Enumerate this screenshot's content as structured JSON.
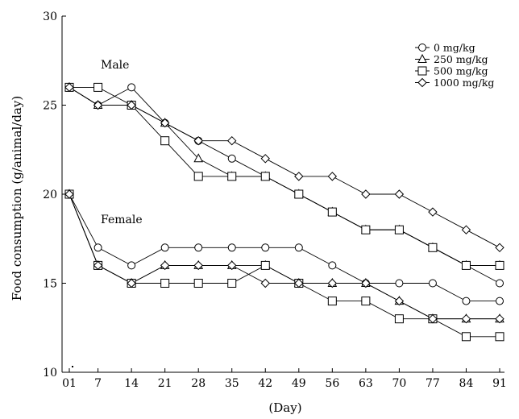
{
  "chart_data": {
    "type": "line",
    "xlabel": "(Day)",
    "ylabel": "Food consumption (g/animal/day)",
    "ylim": [
      10,
      30
    ],
    "yticks": [
      10,
      15,
      20,
      25,
      30
    ],
    "categories": [
      "01",
      "7",
      "14",
      "21",
      "28",
      "35",
      "42",
      "49",
      "56",
      "63",
      "70",
      "77",
      "84",
      "91"
    ],
    "x": [
      1,
      7,
      14,
      21,
      28,
      35,
      42,
      49,
      56,
      63,
      70,
      77,
      84,
      91
    ],
    "annotations": [
      {
        "text": "Male"
      },
      {
        "text": "Female"
      }
    ],
    "legend": {
      "position": "top-right",
      "entries": [
        {
          "label": "0 mg/kg",
          "marker": "circle"
        },
        {
          "label": "250 mg/kg",
          "marker": "triangle"
        },
        {
          "label": "500 mg/kg",
          "marker": "square"
        },
        {
          "label": "1000 mg/kg",
          "marker": "diamond"
        }
      ]
    },
    "series": [
      {
        "group": "Male",
        "dose": "0 mg/kg",
        "marker": "circle",
        "values": [
          26,
          25,
          26,
          24,
          23,
          22,
          21,
          20,
          19,
          18,
          18,
          17,
          16,
          15
        ]
      },
      {
        "group": "Male",
        "dose": "250 mg/kg",
        "marker": "triangle",
        "values": [
          26,
          25,
          25,
          24,
          22,
          21,
          21,
          20,
          19,
          18,
          18,
          17,
          16,
          16
        ]
      },
      {
        "group": "Male",
        "dose": "500 mg/kg",
        "marker": "square",
        "values": [
          26,
          26,
          25,
          23,
          21,
          21,
          21,
          20,
          19,
          18,
          18,
          17,
          16,
          16
        ]
      },
      {
        "group": "Male",
        "dose": "1000 mg/kg",
        "marker": "diamond",
        "values": [
          26,
          25,
          25,
          24,
          23,
          23,
          22,
          21,
          21,
          20,
          20,
          19,
          18,
          17
        ]
      },
      {
        "group": "Female",
        "dose": "0 mg/kg",
        "marker": "circle",
        "values": [
          20,
          17,
          16,
          17,
          17,
          17,
          17,
          17,
          16,
          15,
          15,
          15,
          14,
          14
        ]
      },
      {
        "group": "Female",
        "dose": "250 mg/kg",
        "marker": "triangle",
        "values": [
          20,
          16,
          15,
          16,
          16,
          16,
          16,
          15,
          15,
          15,
          14,
          13,
          13,
          13
        ]
      },
      {
        "group": "Female",
        "dose": "500 mg/kg",
        "marker": "square",
        "values": [
          20,
          16,
          15,
          15,
          15,
          15,
          16,
          15,
          14,
          14,
          13,
          13,
          12,
          12
        ]
      },
      {
        "group": "Female",
        "dose": "1000 mg/kg",
        "marker": "diamond",
        "values": [
          20,
          16,
          15,
          16,
          16,
          16,
          15,
          15,
          15,
          15,
          14,
          13,
          13,
          13
        ]
      }
    ]
  }
}
